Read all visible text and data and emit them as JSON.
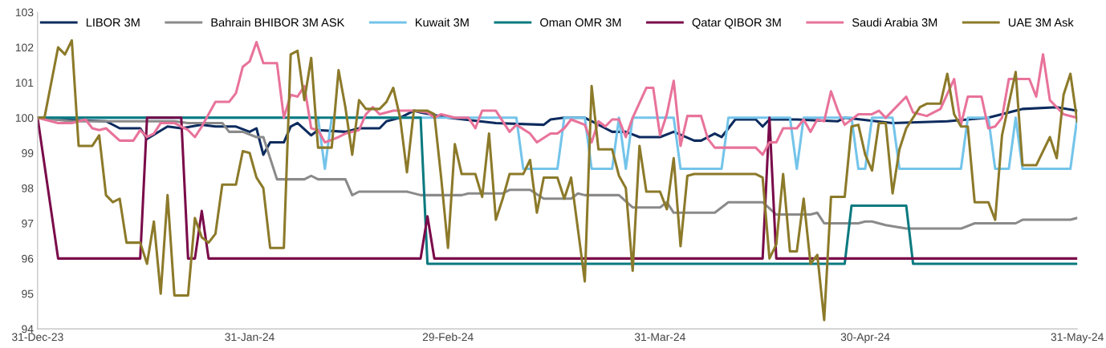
{
  "chart_data": {
    "type": "line",
    "ylim": [
      94,
      103
    ],
    "yticks": [
      94,
      95,
      96,
      97,
      98,
      99,
      100,
      101,
      102,
      103
    ],
    "xlim": [
      "2023-12-31",
      "2024-05-31"
    ],
    "xticks": [
      {
        "value": "2023-12-31",
        "label": "31-Dec-23"
      },
      {
        "value": "2024-01-31",
        "label": "31-Jan-24"
      },
      {
        "value": "2024-02-29",
        "label": "29-Feb-24"
      },
      {
        "value": "2024-03-31",
        "label": "31-Mar-24"
      },
      {
        "value": "2024-04-30",
        "label": "30-Apr-24"
      },
      {
        "value": "2024-05-31",
        "label": "31-May-24"
      }
    ],
    "grid": false,
    "legend": "top",
    "marker": "none",
    "line_style": "solid",
    "series": [
      {
        "name": "LIBOR 3M",
        "color": "#0d2b5e",
        "x": [
          "2023-12-31",
          "2024-01-03",
          "2024-01-10",
          "2024-01-12",
          "2024-01-15",
          "2024-01-16",
          "2024-01-19",
          "2024-01-21",
          "2024-01-24",
          "2024-01-26",
          "2024-01-29",
          "2024-01-31",
          "2024-02-01",
          "2024-02-02",
          "2024-02-03",
          "2024-02-05",
          "2024-02-06",
          "2024-02-07",
          "2024-02-09",
          "2024-02-10",
          "2024-02-14",
          "2024-02-16",
          "2024-02-19",
          "2024-02-20",
          "2024-02-22",
          "2024-02-24",
          "2024-02-25",
          "2024-02-29",
          "2024-03-07",
          "2024-03-14",
          "2024-03-15",
          "2024-03-17",
          "2024-03-20",
          "2024-03-21",
          "2024-03-23",
          "2024-03-24",
          "2024-03-26",
          "2024-03-28",
          "2024-03-31",
          "2024-04-02",
          "2024-04-05",
          "2024-04-06",
          "2024-04-08",
          "2024-04-09",
          "2024-04-11",
          "2024-04-14",
          "2024-04-15",
          "2024-04-16",
          "2024-04-20",
          "2024-04-26",
          "2024-04-27",
          "2024-05-04",
          "2024-05-12",
          "2024-05-15",
          "2024-05-18",
          "2024-05-23",
          "2024-05-28",
          "2024-05-31"
        ],
        "values": [
          100,
          99.95,
          99.9,
          99.7,
          99.7,
          99.4,
          99.75,
          99.7,
          99.8,
          99.75,
          99.75,
          99.6,
          99.7,
          98.95,
          99.3,
          99.3,
          99.75,
          99.85,
          99.5,
          99.65,
          99.6,
          99.7,
          99.7,
          99.9,
          100,
          100.2,
          100.15,
          100,
          99.85,
          99.8,
          99.95,
          100,
          100,
          99.9,
          99.7,
          99.6,
          99.6,
          99.45,
          99.45,
          99.6,
          99.35,
          99.35,
          99.55,
          99.45,
          99.95,
          99.95,
          99.75,
          99.95,
          99.95,
          99.9,
          100,
          99.85,
          99.9,
          99.95,
          100,
          100.25,
          100.3,
          100.2
        ]
      },
      {
        "name": "Bahrain BHIBOR 3M ASK",
        "color": "#8a8a8a",
        "x": [
          "2023-12-31",
          "2024-01-05",
          "2024-01-20",
          "2024-01-22",
          "2024-01-27",
          "2024-01-28",
          "2024-01-30",
          "2024-02-01",
          "2024-02-02",
          "2024-02-04",
          "2024-02-08",
          "2024-02-09",
          "2024-02-10",
          "2024-02-14",
          "2024-02-15",
          "2024-02-16",
          "2024-02-23",
          "2024-02-25",
          "2024-03-02",
          "2024-03-03",
          "2024-03-08",
          "2024-03-09",
          "2024-03-12",
          "2024-03-14",
          "2024-03-18",
          "2024-03-19",
          "2024-03-20",
          "2024-03-25",
          "2024-03-27",
          "2024-03-31",
          "2024-04-01",
          "2024-04-02",
          "2024-04-08",
          "2024-04-10",
          "2024-04-15",
          "2024-04-17",
          "2024-04-22",
          "2024-04-23",
          "2024-04-24",
          "2024-04-29",
          "2024-04-30",
          "2024-05-01",
          "2024-05-03",
          "2024-05-06",
          "2024-05-14",
          "2024-05-16",
          "2024-05-22",
          "2024-05-23",
          "2024-05-30",
          "2024-05-31"
        ],
        "values": [
          100,
          99.9,
          99.9,
          99.85,
          99.85,
          99.6,
          99.6,
          99.45,
          99.45,
          98.25,
          98.25,
          98.35,
          98.25,
          98.25,
          97.8,
          97.9,
          97.9,
          97.8,
          97.8,
          97.85,
          97.85,
          97.95,
          97.95,
          97.7,
          97.7,
          97.85,
          97.8,
          97.8,
          97.45,
          97.45,
          97.6,
          97.3,
          97.3,
          97.6,
          97.6,
          97.25,
          97.25,
          97.3,
          97.0,
          97.0,
          97.05,
          97.05,
          96.95,
          96.85,
          96.85,
          97.0,
          97.0,
          97.1,
          97.1,
          97.15
        ]
      },
      {
        "name": "Kuwait 3M",
        "color": "#74c4ea",
        "x": [
          "2023-12-31",
          "2024-02-10",
          "2024-02-11",
          "2024-02-12",
          "2024-03-10",
          "2024-03-11",
          "2024-03-16",
          "2024-03-17",
          "2024-03-20",
          "2024-03-21",
          "2024-03-24",
          "2024-03-25",
          "2024-03-26",
          "2024-03-27",
          "2024-04-02",
          "2024-04-03",
          "2024-04-09",
          "2024-04-10",
          "2024-04-19",
          "2024-04-20",
          "2024-04-21",
          "2024-04-28",
          "2024-04-29",
          "2024-04-30",
          "2024-05-01",
          "2024-05-04",
          "2024-05-05",
          "2024-05-14",
          "2024-05-15",
          "2024-05-18",
          "2024-05-19",
          "2024-05-21",
          "2024-05-22",
          "2024-05-23",
          "2024-05-30",
          "2024-05-31"
        ],
        "values": [
          100,
          100,
          98.55,
          100,
          100,
          98.55,
          98.55,
          100,
          100,
          98.55,
          98.55,
          100,
          98.55,
          100,
          100,
          98.55,
          98.55,
          100,
          100,
          98.55,
          100,
          100,
          98.55,
          98.55,
          100,
          100,
          98.55,
          98.55,
          100,
          100,
          98.55,
          98.55,
          100,
          98.55,
          98.55,
          100
        ]
      },
      {
        "name": "Oman OMR 3M",
        "color": "#0b7a80",
        "x": [
          "2023-12-31",
          "2024-02-25",
          "2024-02-26",
          "2024-04-27",
          "2024-04-28",
          "2024-05-06",
          "2024-05-07",
          "2024-05-31"
        ],
        "values": [
          100,
          100,
          95.85,
          95.85,
          97.5,
          97.5,
          95.85,
          95.85
        ]
      },
      {
        "name": "Qatar QIBOR 3M",
        "color": "#7a0b4a",
        "x": [
          "2023-12-31",
          "2024-01-03",
          "2024-01-15",
          "2024-01-16",
          "2024-01-21",
          "2024-01-22",
          "2024-01-23",
          "2024-01-24",
          "2024-01-25",
          "2024-02-25",
          "2024-02-26",
          "2024-02-27",
          "2024-04-15",
          "2024-04-16",
          "2024-04-17",
          "2024-05-31"
        ],
        "values": [
          100,
          96,
          96,
          100,
          100,
          96,
          96,
          97.35,
          96,
          96,
          97.2,
          96,
          96,
          100,
          96,
          96
        ]
      },
      {
        "name": "Saudi Arabia 3M",
        "color": "#e8739a",
        "x": [
          "2023-12-31",
          "2024-01-03",
          "2024-01-05",
          "2024-01-07",
          "2024-01-08",
          "2024-01-09",
          "2024-01-10",
          "2024-01-12",
          "2024-01-14",
          "2024-01-15",
          "2024-01-16",
          "2024-01-17",
          "2024-01-18",
          "2024-01-20",
          "2024-01-22",
          "2024-01-23",
          "2024-01-24",
          "2024-01-26",
          "2024-01-28",
          "2024-01-29",
          "2024-01-30",
          "2024-01-31",
          "2024-02-01",
          "2024-02-02",
          "2024-02-04",
          "2024-02-05",
          "2024-02-06",
          "2024-02-07",
          "2024-02-08",
          "2024-02-09",
          "2024-02-10",
          "2024-02-11",
          "2024-02-13",
          "2024-02-14",
          "2024-02-16",
          "2024-02-17",
          "2024-02-18",
          "2024-02-19",
          "2024-02-21",
          "2024-02-24",
          "2024-02-26",
          "2024-02-27",
          "2024-02-28",
          "2024-03-01",
          "2024-03-03",
          "2024-03-04",
          "2024-03-05",
          "2024-03-07",
          "2024-03-09",
          "2024-03-10",
          "2024-03-12",
          "2024-03-13",
          "2024-03-15",
          "2024-03-16",
          "2024-03-17",
          "2024-03-18",
          "2024-03-20",
          "2024-03-21",
          "2024-03-22",
          "2024-03-23",
          "2024-03-24",
          "2024-03-25",
          "2024-03-26",
          "2024-03-27",
          "2024-03-29",
          "2024-03-30",
          "2024-03-31",
          "2024-04-01",
          "2024-04-02",
          "2024-04-03",
          "2024-04-04",
          "2024-04-06",
          "2024-04-07",
          "2024-04-08",
          "2024-04-14",
          "2024-04-15",
          "2024-04-16",
          "2024-04-17",
          "2024-04-18",
          "2024-04-20",
          "2024-04-21",
          "2024-04-22",
          "2024-04-23",
          "2024-04-24",
          "2024-04-25",
          "2024-04-26",
          "2024-04-27",
          "2024-04-29",
          "2024-05-01",
          "2024-05-02",
          "2024-05-03",
          "2024-05-06",
          "2024-05-07",
          "2024-05-09",
          "2024-05-11",
          "2024-05-13",
          "2024-05-14",
          "2024-05-15",
          "2024-05-17",
          "2024-05-18",
          "2024-05-19",
          "2024-05-20",
          "2024-05-21",
          "2024-05-24",
          "2024-05-25",
          "2024-05-26",
          "2024-05-27",
          "2024-05-29",
          "2024-05-31"
        ],
        "values": [
          100,
          99.85,
          99.85,
          99.95,
          99.7,
          99.65,
          99.7,
          99.35,
          99.35,
          99.65,
          99.45,
          99.55,
          99.85,
          99.85,
          99.65,
          99.45,
          99.75,
          100.45,
          100.45,
          100.7,
          101.45,
          101.6,
          102.15,
          101.55,
          101.55,
          100.0,
          100.65,
          100.6,
          100.9,
          99.7,
          99.65,
          99.3,
          99.45,
          99.55,
          99.65,
          100.1,
          100.3,
          100.1,
          100.2,
          100.2,
          100.15,
          100.0,
          100.1,
          100.0,
          100.0,
          99.7,
          100.2,
          100.2,
          99.6,
          99.8,
          99.55,
          99.3,
          99.55,
          99.55,
          99.7,
          99.95,
          99.8,
          99.3,
          99.9,
          99.75,
          99.95,
          99.95,
          99.45,
          100.0,
          100.85,
          100.85,
          99.5,
          100.1,
          101.05,
          99.2,
          100.05,
          100.05,
          99.4,
          99.15,
          99.15,
          98.95,
          99.3,
          99.3,
          99.7,
          99.7,
          99.95,
          99.6,
          99.95,
          99.9,
          100.75,
          100.2,
          99.8,
          100.1,
          100.1,
          100.2,
          100.0,
          100.6,
          100.15,
          100.05,
          100.25,
          101.1,
          99.8,
          100.6,
          100.6,
          99.7,
          99.75,
          100.0,
          101.1,
          101.1,
          100.6,
          101.8,
          100.5,
          100.1,
          100.0
        ]
      },
      {
        "name": "UAE 3M Ask",
        "color": "#8c7a2a",
        "x": [
          "2023-12-31",
          "2024-01-01",
          "2024-01-03",
          "2024-01-04",
          "2024-01-05",
          "2024-01-06",
          "2024-01-08",
          "2024-01-09",
          "2024-01-10",
          "2024-01-11",
          "2024-01-12",
          "2024-01-13",
          "2024-01-15",
          "2024-01-16",
          "2024-01-17",
          "2024-01-18",
          "2024-01-19",
          "2024-01-20",
          "2024-01-22",
          "2024-01-23",
          "2024-01-24",
          "2024-01-25",
          "2024-01-26",
          "2024-01-27",
          "2024-01-29",
          "2024-01-30",
          "2024-01-31",
          "2024-02-01",
          "2024-02-02",
          "2024-02-03",
          "2024-02-05",
          "2024-02-06",
          "2024-02-07",
          "2024-02-08",
          "2024-02-09",
          "2024-02-10",
          "2024-02-12",
          "2024-02-13",
          "2024-02-14",
          "2024-02-15",
          "2024-02-16",
          "2024-02-17",
          "2024-02-19",
          "2024-02-20",
          "2024-02-21",
          "2024-02-22",
          "2024-02-23",
          "2024-02-24",
          "2024-02-26",
          "2024-02-27",
          "2024-02-28",
          "2024-02-29",
          "2024-03-01",
          "2024-03-02",
          "2024-03-04",
          "2024-03-05",
          "2024-03-06",
          "2024-03-07",
          "2024-03-08",
          "2024-03-09",
          "2024-03-11",
          "2024-03-12",
          "2024-03-13",
          "2024-03-14",
          "2024-03-16",
          "2024-03-17",
          "2024-03-18",
          "2024-03-20",
          "2024-03-21",
          "2024-03-22",
          "2024-03-24",
          "2024-03-25",
          "2024-03-26",
          "2024-03-27",
          "2024-03-28",
          "2024-03-29",
          "2024-03-31",
          "2024-04-01",
          "2024-04-02",
          "2024-04-03",
          "2024-04-04",
          "2024-04-05",
          "2024-04-14",
          "2024-04-15",
          "2024-04-16",
          "2024-04-17",
          "2024-04-18",
          "2024-04-19",
          "2024-04-20",
          "2024-04-21",
          "2024-04-22",
          "2024-04-23",
          "2024-04-24",
          "2024-04-25",
          "2024-04-27",
          "2024-04-28",
          "2024-04-29",
          "2024-04-30",
          "2024-05-01",
          "2024-05-02",
          "2024-05-03",
          "2024-05-04",
          "2024-05-05",
          "2024-05-06",
          "2024-05-08",
          "2024-05-09",
          "2024-05-11",
          "2024-05-12",
          "2024-05-13",
          "2024-05-14",
          "2024-05-15",
          "2024-05-16",
          "2024-05-18",
          "2024-05-19",
          "2024-05-20",
          "2024-05-22",
          "2024-05-23",
          "2024-05-25",
          "2024-05-27",
          "2024-05-28",
          "2024-05-29",
          "2024-05-30",
          "2024-05-31"
        ],
        "values": [
          100,
          100,
          102.0,
          101.8,
          102.2,
          99.2,
          99.2,
          99.5,
          97.8,
          97.6,
          97.7,
          96.45,
          96.45,
          95.85,
          97.05,
          95.0,
          97.8,
          94.95,
          94.95,
          97.15,
          96.6,
          96.45,
          96.7,
          98.1,
          98.1,
          99.05,
          99.0,
          98.3,
          98.0,
          96.3,
          96.3,
          101.8,
          101.9,
          100.5,
          101.7,
          99.15,
          99.15,
          101.35,
          100.3,
          98.95,
          100.5,
          100.25,
          100.25,
          100.45,
          100.85,
          100.0,
          98.45,
          100.2,
          100.2,
          100.1,
          98.3,
          96.3,
          99.25,
          98.4,
          98.4,
          97.75,
          99.55,
          97.1,
          97.7,
          98.4,
          98.4,
          98.8,
          97.3,
          98.3,
          98.3,
          97.7,
          98.3,
          95.35,
          100.9,
          99.1,
          99.1,
          98.35,
          98.0,
          95.65,
          99.2,
          97.9,
          97.9,
          97.4,
          98.85,
          96.35,
          98.35,
          98.4,
          98.4,
          98.3,
          96.0,
          96.4,
          98.4,
          96.2,
          96.2,
          97.7,
          95.85,
          96.1,
          94.25,
          97.75,
          97.75,
          99.75,
          99.8,
          98.95,
          98.5,
          99.85,
          99.85,
          97.85,
          99.1,
          99.7,
          100.3,
          100.4,
          100.4,
          101.25,
          100.1,
          99.75,
          99.75,
          97.6,
          97.6,
          97.1,
          99.5,
          101.3,
          98.65,
          98.65,
          99.45,
          98.85,
          100.65,
          101.25,
          99.9
        ]
      }
    ]
  }
}
